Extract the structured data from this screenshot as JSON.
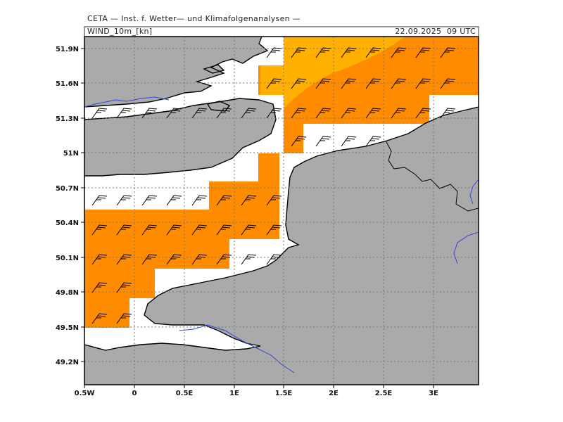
{
  "header": {
    "institute": "CETA — Inst. f. Wetter— und Klimafolgenanalysen —",
    "variable": "WIND_10m_[kn]",
    "valid_time": "22.09.2025  09 UTC"
  },
  "axes": {
    "x_ticks": [
      "0.5W",
      "0",
      "0.5E",
      "1E",
      "1.5E",
      "2E",
      "2.5E",
      "3E"
    ],
    "y_ticks": [
      "51.9N",
      "51.6N",
      "51.3N",
      "51N",
      "50.7N",
      "50.4N",
      "50.1N",
      "49.8N",
      "49.5N",
      "49.2N"
    ]
  },
  "colors": {
    "land": "#aaaaaa",
    "sea": "#ffffff",
    "wind_orange": "#ff8c00",
    "wind_yellow": "#ffb000",
    "river": "#3344dd",
    "coast": "#000000",
    "grid": "#777777"
  }
}
